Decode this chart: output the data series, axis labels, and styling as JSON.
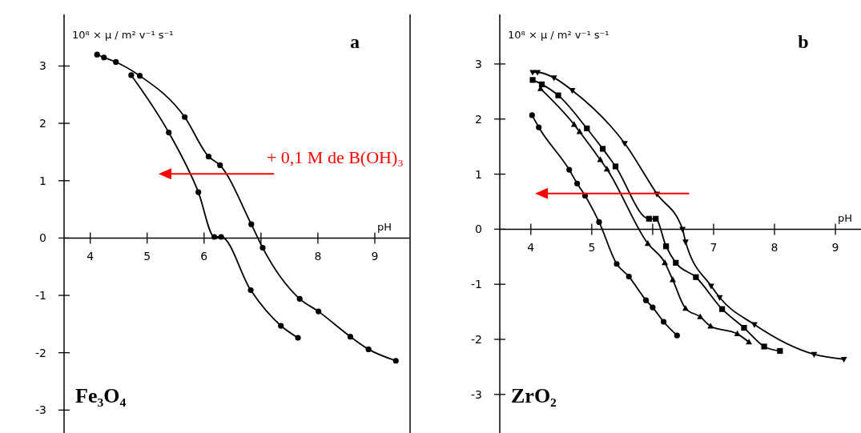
{
  "chart_data": [
    {
      "type": "line",
      "ylabel": "10⁸ × μ / m² v⁻¹ s⁻¹",
      "xlabel": "pH",
      "annotations": [
        "a",
        "Fe₃O₄",
        "+ 0,1 M de B(OH)₃"
      ],
      "xlim": [
        3.54,
        9.62
      ],
      "ylim": [
        -3.4,
        3.9
      ],
      "xticks": [
        4,
        5,
        6,
        {
          "value": 7,
          "label": null
        },
        8,
        9
      ],
      "yticks": [
        -3,
        -2,
        -1,
        0,
        1,
        2,
        3
      ],
      "grid": false,
      "line_style": "solid",
      "series": [
        {
          "color": "#000000",
          "marker": "circle",
          "x": [
            4.12,
            4.24,
            4.45,
            4.87,
            5.66,
            6.08,
            6.28,
            6.83,
            7.03,
            7.68,
            8.01,
            8.57,
            8.89,
            9.37
          ],
          "values": [
            3.2,
            3.15,
            3.07,
            2.83,
            2.11,
            1.42,
            1.27,
            0.24,
            -0.17,
            -1.06,
            -1.28,
            -1.72,
            -1.94,
            -2.14
          ]
        },
        {
          "color": "#000000",
          "marker": "circle",
          "x": [
            4.72,
            5.38,
            5.9,
            6.18,
            6.3,
            6.82,
            7.35,
            7.65
          ],
          "values": [
            2.84,
            1.84,
            0.8,
            0.02,
            0.02,
            -0.91,
            -1.53,
            -1.74
          ]
        }
      ]
    },
    {
      "type": "line",
      "ylabel": "10⁸ × μ / m² v⁻¹ s⁻¹",
      "xlabel": "pH",
      "annotations": [
        "b",
        "ZrO₂"
      ],
      "xlim": [
        3.49,
        9.42
      ],
      "ylim": [
        -3.7,
        3.9
      ],
      "xticks": [
        4,
        5,
        {
          "value": 6,
          "label": null
        },
        7,
        8,
        9
      ],
      "yticks": [
        -3,
        -2,
        -1,
        0,
        1,
        2,
        3
      ],
      "grid": false,
      "line_style": "solid",
      "series": [
        {
          "color": "#000000",
          "marker": "circle",
          "x": [
            4.02,
            4.13,
            4.63,
            4.76,
            4.89,
            5.12,
            5.41,
            5.61,
            5.89,
            6.0,
            6.18,
            6.4
          ],
          "values": [
            2.07,
            1.85,
            1.08,
            0.83,
            0.61,
            0.13,
            -0.63,
            -0.86,
            -1.29,
            -1.42,
            -1.68,
            -1.93
          ]
        },
        {
          "color": "#000000",
          "marker": "triangle",
          "x": [
            4.16,
            4.71,
            4.8,
            5.14,
            5.25,
            5.92,
            6.2,
            6.33,
            6.54,
            6.78,
            6.95,
            7.39,
            7.58
          ],
          "values": [
            2.55,
            1.9,
            1.77,
            1.26,
            1.09,
            -0.26,
            -0.61,
            -0.92,
            -1.44,
            -1.59,
            -1.76,
            -1.9,
            -2.05
          ]
        },
        {
          "color": "#000000",
          "marker": "square",
          "x": [
            4.03,
            4.18,
            4.45,
            4.92,
            5.18,
            5.39,
            5.94,
            6.05,
            6.22,
            6.38,
            6.71,
            7.14,
            7.5,
            7.83,
            8.09
          ],
          "values": [
            2.71,
            2.63,
            2.43,
            1.83,
            1.46,
            1.14,
            0.19,
            0.19,
            -0.31,
            -0.61,
            -0.87,
            -1.45,
            -1.79,
            -2.13,
            -2.21
          ]
        },
        {
          "color": "#000000",
          "marker": "triangle-down",
          "x": [
            4.03,
            4.11,
            4.38,
            4.68,
            5.54,
            6.07,
            6.49,
            6.54,
            6.96,
            7.1,
            7.67,
            8.65,
            9.14
          ],
          "values": [
            2.85,
            2.85,
            2.75,
            2.52,
            1.56,
            0.64,
            0.0,
            -0.23,
            -1.03,
            -1.24,
            -1.73,
            -2.27,
            -2.36
          ]
        }
      ]
    }
  ]
}
